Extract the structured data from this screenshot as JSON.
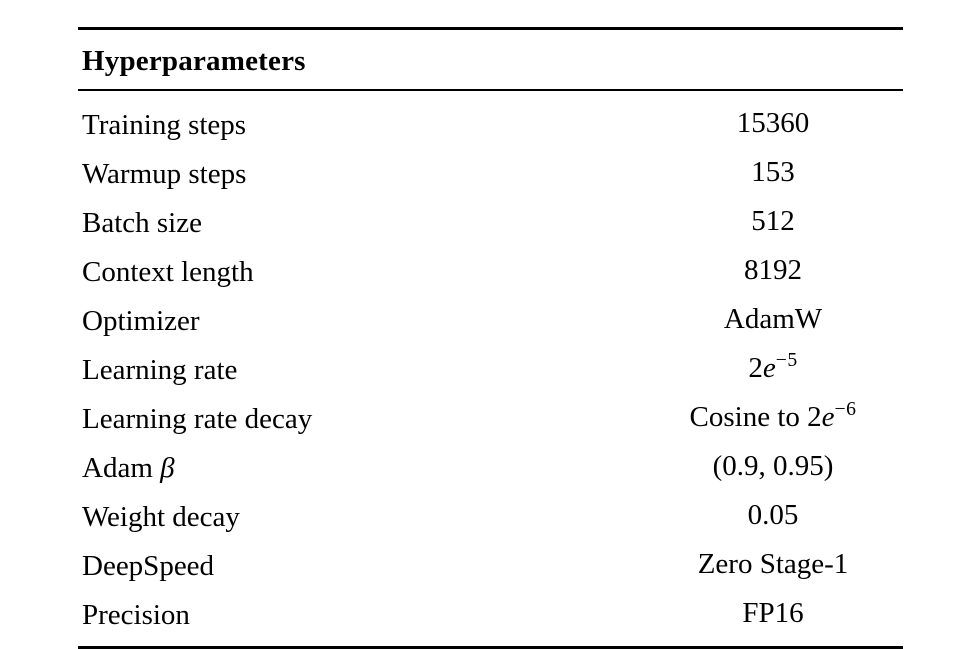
{
  "table": {
    "header": "Hyperparameters",
    "rows": [
      {
        "label": "Training steps",
        "value": {
          "pre": "15360"
        }
      },
      {
        "label": "Warmup steps",
        "value": {
          "pre": "153"
        }
      },
      {
        "label": "Batch size",
        "value": {
          "pre": "512"
        }
      },
      {
        "label": "Context length",
        "value": {
          "pre": "8192"
        }
      },
      {
        "label": "Optimizer",
        "value": {
          "pre": "AdamW"
        }
      },
      {
        "label": "Learning rate",
        "value": {
          "pre": "2",
          "var": "e",
          "sup": "−5"
        }
      },
      {
        "label": "Learning rate decay",
        "value": {
          "pre": "Cosine to 2",
          "var": "e",
          "sup": "−6"
        }
      },
      {
        "label": "Adam ",
        "label_var": "β",
        "value": {
          "pre": "(0.9, 0.95)"
        }
      },
      {
        "label": "Weight decay",
        "value": {
          "pre": "0.05"
        }
      },
      {
        "label": "DeepSpeed",
        "value": {
          "pre": "Zero Stage-1"
        }
      },
      {
        "label": "Precision",
        "value": {
          "pre": "FP16"
        }
      }
    ],
    "colors": {
      "text": "#000000",
      "background": "#ffffff",
      "rule": "#000000"
    }
  }
}
